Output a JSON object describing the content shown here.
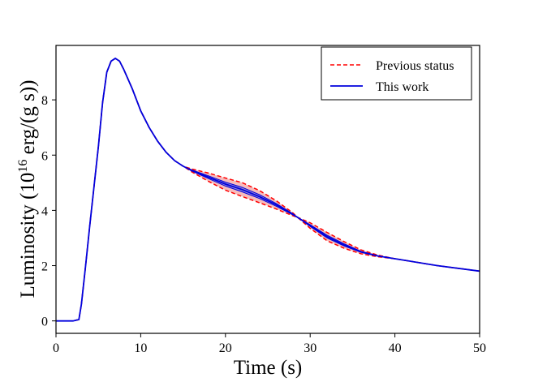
{
  "chart_data": {
    "type": "line",
    "xlabel": "Time (s)",
    "ylabel_prefix": "Luminosity (10",
    "ylabel_sup": "16",
    "ylabel_suffix": " erg/(g s))",
    "xlim": [
      0,
      50
    ],
    "ylim": [
      -0.45,
      9.97
    ],
    "xticks": [
      0,
      10,
      20,
      30,
      40,
      50
    ],
    "yticks": [
      0,
      2,
      4,
      6,
      8
    ],
    "grid": false,
    "legend_position": "top-right",
    "x": [
      0,
      1,
      2,
      2.7,
      3,
      3.5,
      4,
      4.5,
      5,
      5.5,
      6,
      6.5,
      7,
      7.5,
      8,
      9,
      10,
      11,
      12,
      13,
      14,
      15,
      16,
      18,
      20,
      22,
      24,
      26,
      28,
      28.5,
      30,
      32,
      34,
      36,
      38,
      40,
      45,
      50
    ],
    "series": [
      {
        "name": "Previous status",
        "color": "#ff0000",
        "style": "dashed",
        "band_upper": [
          0,
          0,
          0,
          0.05,
          0.6,
          2.0,
          3.5,
          4.9,
          6.3,
          7.9,
          9.0,
          9.4,
          9.5,
          9.4,
          9.1,
          8.4,
          7.6,
          7.0,
          6.5,
          6.1,
          5.8,
          5.6,
          5.5,
          5.35,
          5.17,
          5.0,
          4.72,
          4.35,
          3.9,
          3.75,
          3.55,
          3.2,
          2.87,
          2.57,
          2.38,
          2.25,
          2.0,
          1.8
        ],
        "band_lower": [
          0,
          0,
          0,
          0.05,
          0.6,
          2.0,
          3.5,
          4.9,
          6.3,
          7.9,
          9.0,
          9.4,
          9.5,
          9.4,
          9.1,
          8.4,
          7.6,
          7.0,
          6.5,
          6.1,
          5.8,
          5.6,
          5.4,
          5.05,
          4.73,
          4.5,
          4.28,
          4.05,
          3.8,
          3.75,
          3.35,
          2.9,
          2.63,
          2.43,
          2.32,
          2.25,
          2.0,
          1.8
        ],
        "fill_color": "#f4a0a0"
      },
      {
        "name": "This work",
        "color": "#0000dd",
        "style": "solid",
        "values": [
          0,
          0,
          0,
          0.05,
          0.6,
          2.0,
          3.5,
          4.9,
          6.3,
          7.9,
          9.0,
          9.4,
          9.5,
          9.4,
          9.1,
          8.4,
          7.6,
          7.0,
          6.5,
          6.1,
          5.8,
          5.6,
          5.45,
          5.2,
          4.95,
          4.75,
          4.5,
          4.2,
          3.85,
          3.75,
          3.45,
          3.05,
          2.75,
          2.5,
          2.35,
          2.25,
          2.0,
          1.8
        ],
        "band_upper": [
          0,
          0,
          0,
          0.05,
          0.6,
          2.0,
          3.5,
          4.9,
          6.3,
          7.9,
          9.0,
          9.4,
          9.5,
          9.4,
          9.1,
          8.4,
          7.6,
          7.0,
          6.5,
          6.1,
          5.8,
          5.6,
          5.47,
          5.25,
          5.02,
          4.83,
          4.57,
          4.25,
          3.87,
          3.75,
          3.48,
          3.1,
          2.79,
          2.52,
          2.36,
          2.25,
          2.0,
          1.8
        ],
        "band_lower": [
          0,
          0,
          0,
          0.05,
          0.6,
          2.0,
          3.5,
          4.9,
          6.3,
          7.9,
          9.0,
          9.4,
          9.5,
          9.4,
          9.1,
          8.4,
          7.6,
          7.0,
          6.5,
          6.1,
          5.8,
          5.6,
          5.43,
          5.15,
          4.88,
          4.67,
          4.43,
          4.15,
          3.83,
          3.75,
          3.42,
          3.0,
          2.71,
          2.48,
          2.34,
          2.25,
          2.0,
          1.8
        ],
        "fill_color": "#8080d8"
      }
    ]
  }
}
